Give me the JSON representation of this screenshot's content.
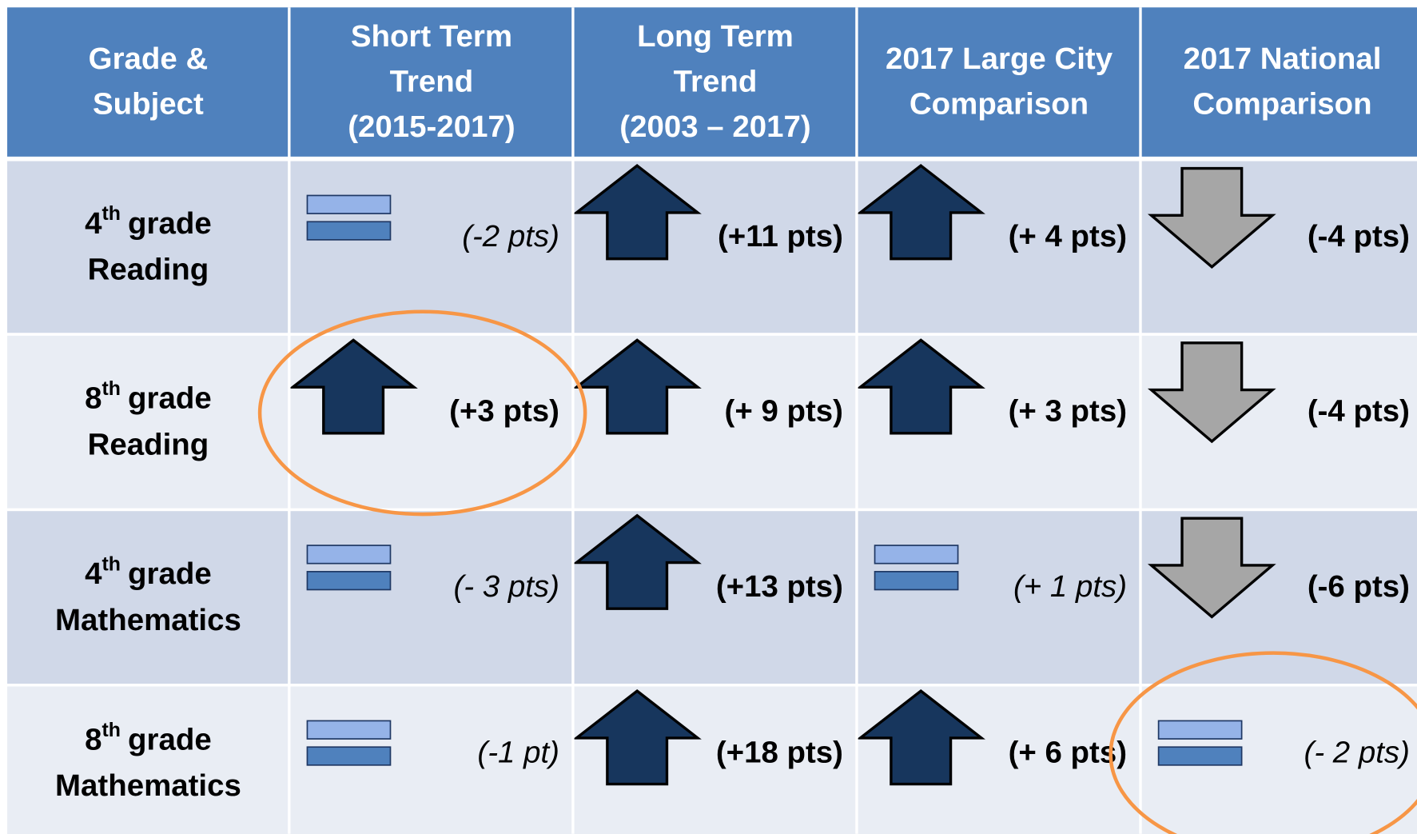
{
  "header": [
    [
      "Grade &",
      "Subject"
    ],
    [
      "Short Term",
      "Trend",
      "(2015-2017)"
    ],
    [
      "Long Term",
      "Trend",
      "(2003 – 2017)"
    ],
    [
      "2017 Large City",
      "Comparison"
    ],
    [
      "2017 National",
      "Comparison"
    ]
  ],
  "rows": [
    {
      "grade": {
        "num": "4",
        "sup": "th",
        "word": "grade",
        "subject": "Reading"
      },
      "cells": [
        {
          "trend": "equal",
          "text": "(-2 pts)"
        },
        {
          "trend": "up",
          "text": "(+11 pts)"
        },
        {
          "trend": "up",
          "text": "(+ 4 pts)"
        },
        {
          "trend": "down",
          "text": "(-4 pts)"
        }
      ]
    },
    {
      "grade": {
        "num": "8",
        "sup": "th",
        "word": "grade",
        "subject": "Reading"
      },
      "cells": [
        {
          "trend": "up",
          "text": "(+3 pts)",
          "highlighted": true
        },
        {
          "trend": "up",
          "text": "(+ 9 pts)"
        },
        {
          "trend": "up",
          "text": "(+ 3 pts)"
        },
        {
          "trend": "down",
          "text": "(-4 pts)"
        }
      ]
    },
    {
      "grade": {
        "num": "4",
        "sup": "th",
        "word": "grade",
        "subject": "Mathematics"
      },
      "cells": [
        {
          "trend": "equal",
          "text": "(- 3 pts)"
        },
        {
          "trend": "up",
          "text": "(+13 pts)"
        },
        {
          "trend": "equal",
          "text": "(+ 1 pts)"
        },
        {
          "trend": "down",
          "text": "(-6 pts)"
        }
      ]
    },
    {
      "grade": {
        "num": "8",
        "sup": "th",
        "word": "grade",
        "subject": "Mathematics"
      },
      "cells": [
        {
          "trend": "equal",
          "text": "(-1 pt)"
        },
        {
          "trend": "up",
          "text": "(+18 pts)"
        },
        {
          "trend": "up",
          "text": "(+ 6 pts)"
        },
        {
          "trend": "equal",
          "text": "(- 2 pts)",
          "highlighted": true
        }
      ]
    }
  ]
}
